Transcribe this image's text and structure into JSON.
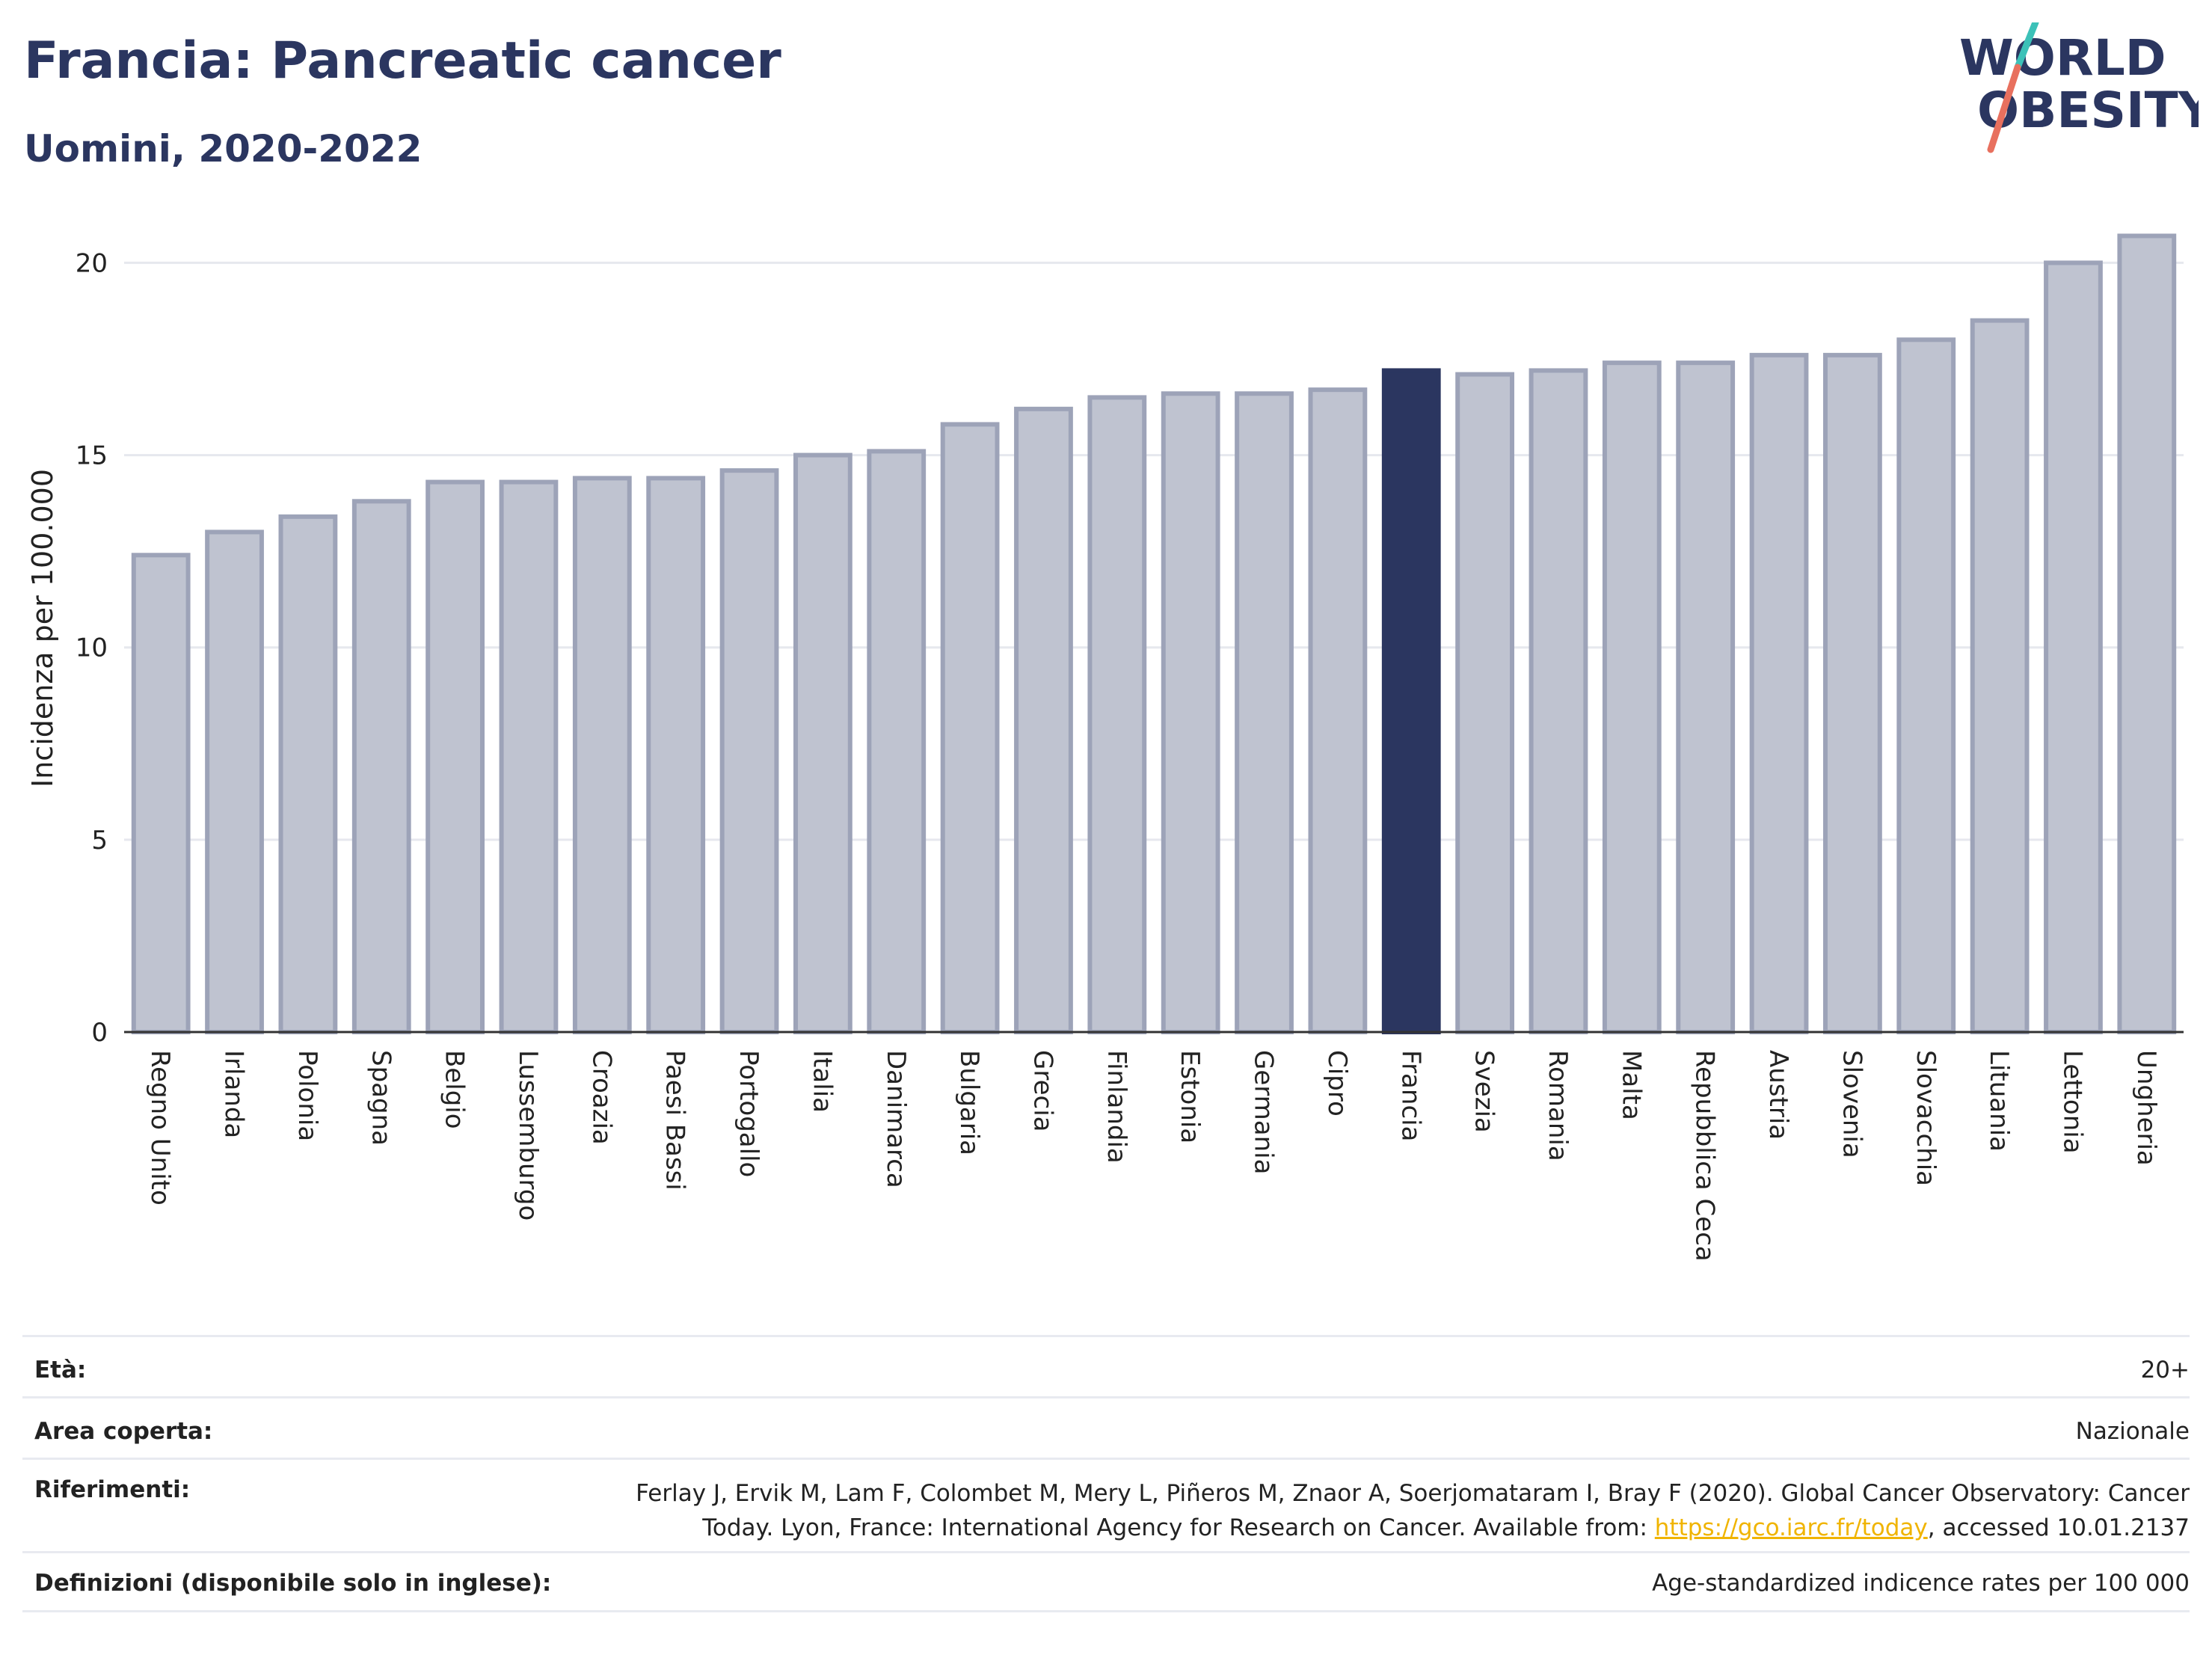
{
  "header": {
    "title": "Francia: Pancreatic cancer",
    "subtitle": "Uomini, 2020-2022",
    "logo_line1": "WORLD",
    "logo_line2": "OBESITY"
  },
  "colors": {
    "bar_default": "#bfc3d0",
    "bar_default_stroke": "#9da3b8",
    "bar_highlight": "#2b3660",
    "grid": "#e6e8ee",
    "text": "#2b3660",
    "logo_teal": "#3cc1b8",
    "logo_coral": "#e8705e",
    "link": "#f0b400"
  },
  "chart_data": {
    "type": "bar",
    "title": "Francia: Pancreatic cancer",
    "subtitle": "Uomini, 2020-2022",
    "xlabel": "",
    "ylabel": "Incidenza per 100.000",
    "ylim": [
      0,
      21
    ],
    "yticks": [
      0,
      5,
      10,
      15,
      20
    ],
    "grid": true,
    "highlight": "Francia",
    "categories": [
      "Regno Unito",
      "Irlanda",
      "Polonia",
      "Spagna",
      "Belgio",
      "Lussemburgo",
      "Croazia",
      "Paesi Bassi",
      "Portogallo",
      "Italia",
      "Danimarca",
      "Bulgaria",
      "Grecia",
      "Finlandia",
      "Estonia",
      "Germania",
      "Cipro",
      "Francia",
      "Svezia",
      "Romania",
      "Malta",
      "Repubblica Ceca",
      "Austria",
      "Slovenia",
      "Slovacchia",
      "Lituania",
      "Lettonia",
      "Ungheria"
    ],
    "values": [
      12.4,
      13.0,
      13.4,
      13.8,
      14.3,
      14.3,
      14.4,
      14.4,
      14.6,
      15.0,
      15.1,
      15.8,
      16.2,
      16.5,
      16.6,
      16.6,
      16.7,
      17.2,
      17.1,
      17.2,
      17.4,
      17.4,
      17.6,
      17.6,
      18.0,
      18.5,
      20.0,
      20.7
    ]
  },
  "footer": {
    "age_label": "Età:",
    "age_value": "20+",
    "coverage_label": "Area coperta:",
    "coverage_value": "Nazionale",
    "references_label": "Riferimenti:",
    "references_text": "Ferlay J, Ervik M, Lam F, Colombet M, Mery L, Piñeros M, Znaor A, Soerjomataram I, Bray F (2020). Global Cancer Observatory: Cancer Today. Lyon, France: International Agency for Research on Cancer. Available from: ",
    "references_link": "https://gco.iarc.fr/today",
    "references_suffix": ", accessed 10.01.2137",
    "definitions_label": "Definizioni (disponibile solo in inglese):",
    "definitions_value": "Age-standardized indicence rates per 100 000"
  }
}
